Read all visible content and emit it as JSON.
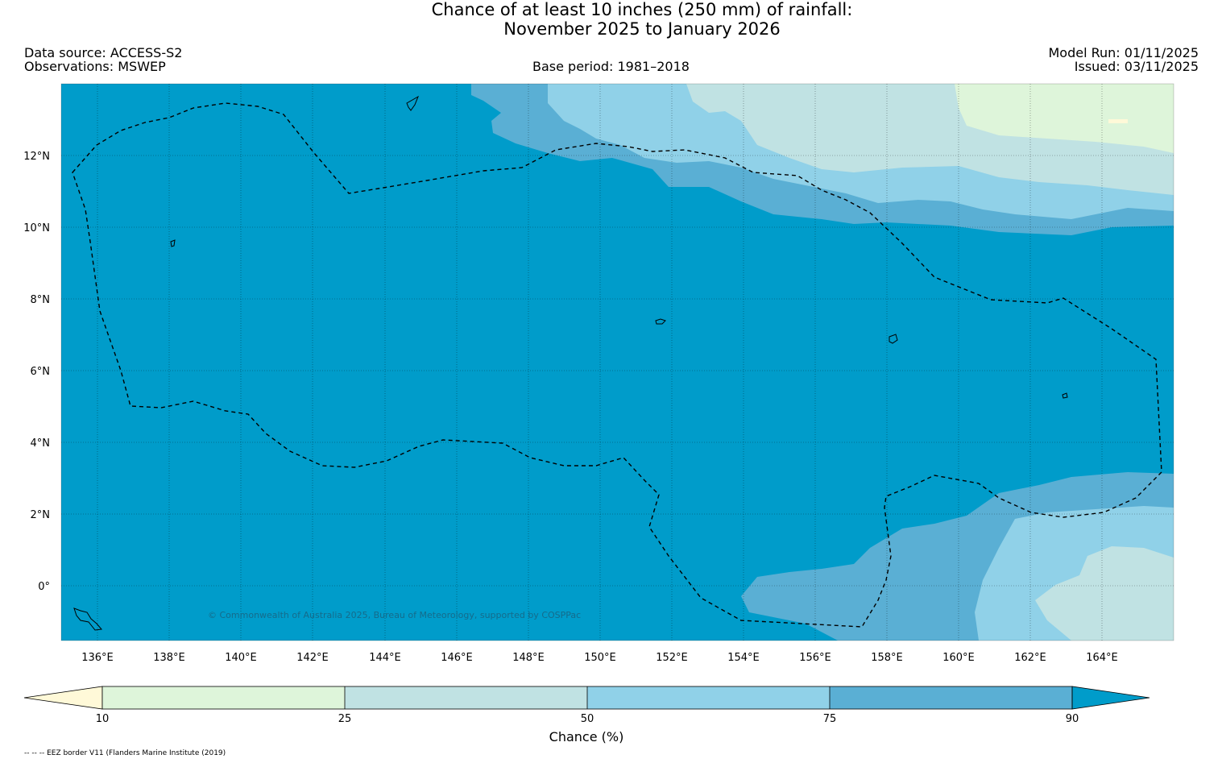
{
  "title": {
    "line1": "Chance of at least 10 inches (250  mm) of rainfall:",
    "line2": "November 2025 to January 2026"
  },
  "header": {
    "data_source": "Data source: ACCESS-S2",
    "observations": "Observations: MSWEP",
    "base_period": "Base period: 1981–2018",
    "model_run": "Model Run: 01/11/2025",
    "issued": "Issued: 03/11/2025"
  },
  "map": {
    "lat_labels": [
      "12°N",
      "10°N",
      "8°N",
      "6°N",
      "4°N",
      "2°N",
      "0°"
    ],
    "lon_labels": [
      "136°E",
      "138°E",
      "140°E",
      "142°E",
      "144°E",
      "146°E",
      "148°E",
      "150°E",
      "152°E",
      "154°E",
      "156°E",
      "158°E",
      "160°E",
      "162°E",
      "164°E"
    ],
    "copyright": "© Commonwealth of Australia 2025, Bureau of Meteorology, supported by COSPPac"
  },
  "colorbar": {
    "ticks": [
      "10",
      "25",
      "50",
      "75",
      "90"
    ],
    "label": "Chance (%)",
    "colors": [
      "#fff9d8",
      "#def5da",
      "#c0e2e3",
      "#90d1e8",
      "#5aafd4",
      "#009cca"
    ]
  },
  "footnote": "-- -- -- EEZ border V11 (Flanders Marine Institute (2019)"
}
